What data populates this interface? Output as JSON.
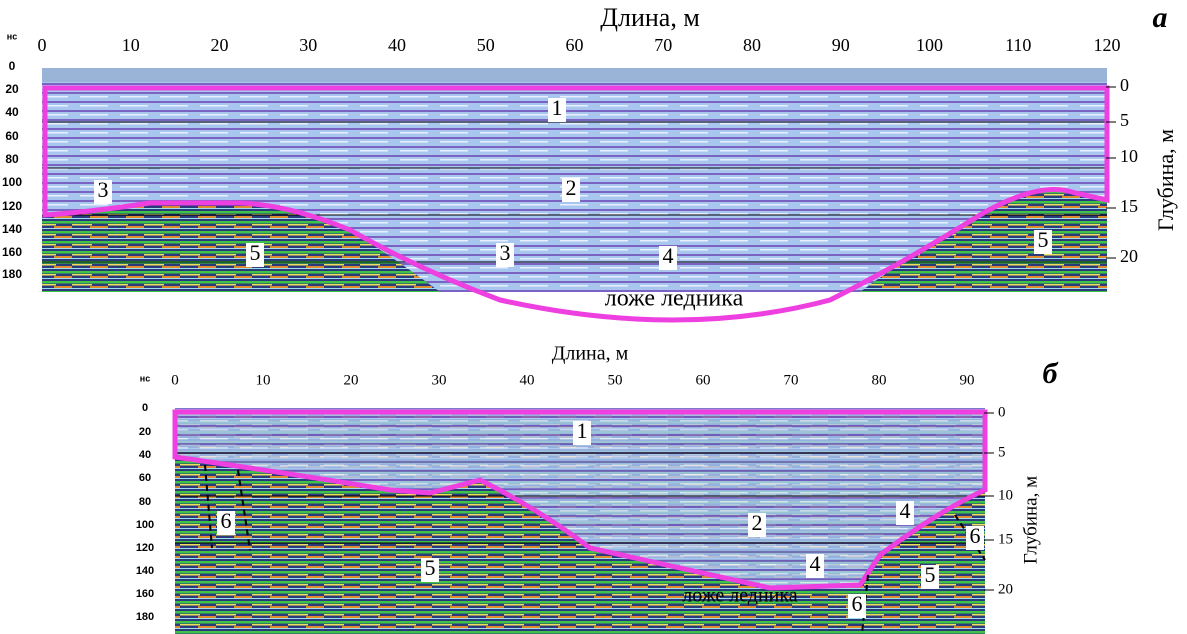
{
  "panel_a": {
    "letter": "а",
    "x_title": "Длина, м",
    "y_unit": "нс",
    "depth_title": "Глубина, м",
    "x_ticks": [
      0,
      10,
      20,
      30,
      40,
      50,
      60,
      70,
      80,
      90,
      100,
      110,
      120
    ],
    "ns_ticks": [
      0,
      20,
      40,
      60,
      80,
      100,
      120,
      140,
      160,
      180
    ],
    "depth_ticks": [
      0,
      5,
      10,
      15,
      20
    ],
    "zone_labels": [
      "1",
      "2",
      "3",
      "3",
      "4",
      "5",
      "5"
    ],
    "bed_label": "ложе ледника"
  },
  "panel_b": {
    "letter": "б",
    "x_title": "Длина, м",
    "y_unit": "нс",
    "depth_title": "Глубина, м",
    "x_ticks": [
      0,
      10,
      20,
      30,
      40,
      50,
      60,
      70,
      80,
      90
    ],
    "ns_ticks": [
      0,
      20,
      40,
      60,
      80,
      100,
      120,
      140,
      160,
      180
    ],
    "depth_ticks": [
      0,
      5,
      10,
      15,
      20
    ],
    "zone_labels": [
      "1",
      "2",
      "4",
      "4",
      "5",
      "5",
      "6",
      "6",
      "6"
    ],
    "bed_label": "ложе ледника"
  }
}
